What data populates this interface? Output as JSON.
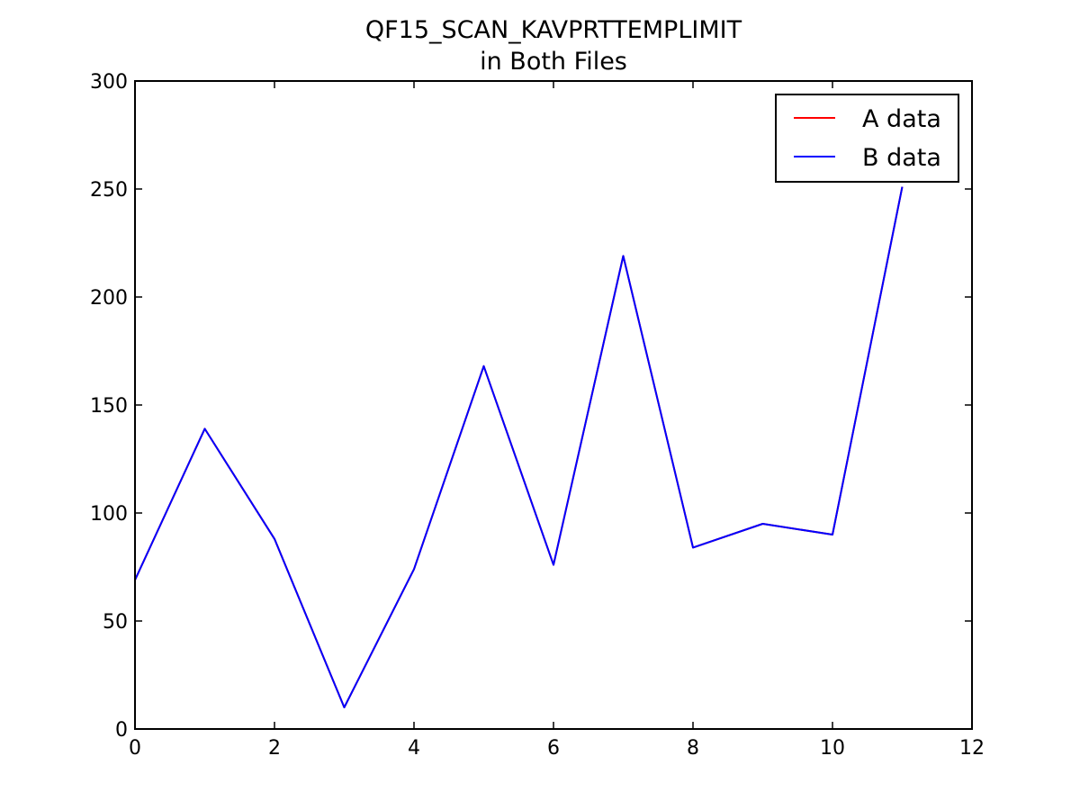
{
  "chart_data": {
    "type": "line",
    "title": "QF15_SCAN_KAVPRTTEMPLIMIT",
    "subtitle": "in Both Files",
    "xlabel": "",
    "ylabel": "",
    "xlim": [
      0,
      12
    ],
    "ylim": [
      0,
      300
    ],
    "xticks": [
      0,
      2,
      4,
      6,
      8,
      10,
      12
    ],
    "yticks": [
      0,
      50,
      100,
      150,
      200,
      250,
      300
    ],
    "grid": false,
    "legend_position": "top-right",
    "x": [
      0,
      1,
      2,
      3,
      4,
      5,
      6,
      7,
      8,
      9,
      10,
      11
    ],
    "series": [
      {
        "name": "A data",
        "color": "#ff0000",
        "values": [
          69,
          139,
          88,
          10,
          74,
          168,
          76,
          219,
          84,
          95,
          90,
          251
        ]
      },
      {
        "name": "B data",
        "color": "#0000ff",
        "values": [
          69,
          139,
          88,
          10,
          74,
          168,
          76,
          219,
          84,
          95,
          90,
          251
        ]
      }
    ]
  }
}
